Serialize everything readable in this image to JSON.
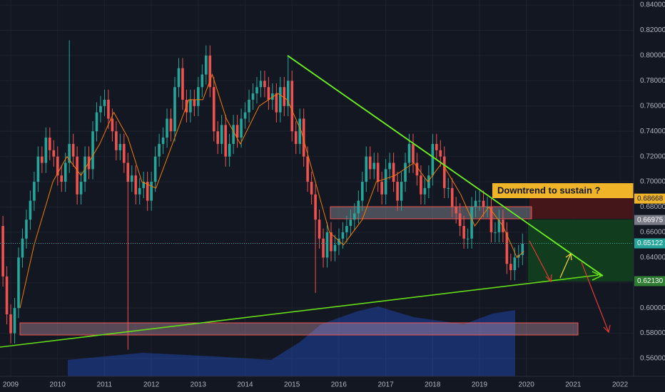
{
  "chart_data": {
    "type": "candlestick",
    "annotation": "Downtrend to sustain ?",
    "up_color": "#26a69a",
    "down_color": "#ef5350",
    "grid": true,
    "open": [
      0.665,
      0.625,
      0.595,
      0.58,
      0.6,
      0.64,
      0.655,
      0.67,
      0.685,
      0.7,
      0.72,
      0.715,
      0.735,
      0.725,
      0.72,
      0.705,
      0.7,
      0.715,
      0.73,
      0.72,
      0.69,
      0.7,
      0.72,
      0.71,
      0.74,
      0.755,
      0.76,
      0.765,
      0.75,
      0.74,
      0.725,
      0.73,
      0.715,
      0.7,
      0.705,
      0.69,
      0.695,
      0.7,
      0.685,
      0.7,
      0.72,
      0.73,
      0.735,
      0.75,
      0.74,
      0.775,
      0.79,
      0.765,
      0.755,
      0.765,
      0.76,
      0.775,
      0.785,
      0.8,
      0.775,
      0.74,
      0.73,
      0.745,
      0.72,
      0.73,
      0.745,
      0.735,
      0.75,
      0.755,
      0.765,
      0.77,
      0.775,
      0.78,
      0.775,
      0.765,
      0.77,
      0.755,
      0.775,
      0.76,
      0.78,
      0.74,
      0.73,
      0.75,
      0.72,
      0.7,
      0.69,
      0.67,
      0.655,
      0.64,
      0.66,
      0.645,
      0.65,
      0.655,
      0.66,
      0.665,
      0.67,
      0.675,
      0.685,
      0.7,
      0.72,
      0.71,
      0.715,
      0.7,
      0.69,
      0.71,
      0.715,
      0.7,
      0.685,
      0.7,
      0.715,
      0.73,
      0.715,
      0.705,
      0.69,
      0.695,
      0.705,
      0.73,
      0.725,
      0.72,
      0.695,
      0.695,
      0.68,
      0.675,
      0.665,
      0.655,
      0.655,
      0.68,
      0.685,
      0.685,
      0.68,
      0.68,
      0.66,
      0.66,
      0.67,
      0.66,
      0.635,
      0.63,
      0.64,
      0.642
    ],
    "high": [
      0.673,
      0.633,
      0.603,
      0.608,
      0.648,
      0.663,
      0.678,
      0.693,
      0.708,
      0.728,
      0.728,
      0.743,
      0.743,
      0.733,
      0.728,
      0.713,
      0.723,
      0.812,
      0.738,
      0.728,
      0.708,
      0.728,
      0.728,
      0.748,
      0.763,
      0.768,
      0.773,
      0.773,
      0.758,
      0.748,
      0.738,
      0.738,
      0.723,
      0.713,
      0.713,
      0.703,
      0.708,
      0.708,
      0.708,
      0.728,
      0.738,
      0.743,
      0.758,
      0.758,
      0.783,
      0.798,
      0.798,
      0.773,
      0.773,
      0.773,
      0.783,
      0.793,
      0.808,
      0.808,
      0.783,
      0.748,
      0.753,
      0.753,
      0.738,
      0.753,
      0.753,
      0.758,
      0.763,
      0.773,
      0.778,
      0.783,
      0.788,
      0.788,
      0.783,
      0.778,
      0.778,
      0.783,
      0.783,
      0.8,
      0.788,
      0.748,
      0.758,
      0.758,
      0.728,
      0.708,
      0.698,
      0.678,
      0.663,
      0.668,
      0.668,
      0.658,
      0.663,
      0.668,
      0.673,
      0.678,
      0.683,
      0.693,
      0.708,
      0.728,
      0.728,
      0.723,
      0.723,
      0.708,
      0.718,
      0.723,
      0.723,
      0.708,
      0.708,
      0.723,
      0.738,
      0.738,
      0.723,
      0.713,
      0.703,
      0.713,
      0.738,
      0.738,
      0.733,
      0.728,
      0.703,
      0.703,
      0.688,
      0.683,
      0.673,
      0.663,
      0.688,
      0.693,
      0.693,
      0.693,
      0.688,
      0.688,
      0.668,
      0.678,
      0.678,
      0.668,
      0.643,
      0.648,
      0.65,
      0.659
    ],
    "low": [
      0.617,
      0.587,
      0.572,
      0.572,
      0.592,
      0.632,
      0.647,
      0.662,
      0.677,
      0.692,
      0.707,
      0.707,
      0.717,
      0.712,
      0.697,
      0.692,
      0.692,
      0.707,
      0.712,
      0.682,
      0.682,
      0.692,
      0.702,
      0.702,
      0.732,
      0.747,
      0.752,
      0.742,
      0.732,
      0.717,
      0.717,
      0.707,
      0.567,
      0.692,
      0.682,
      0.682,
      0.687,
      0.677,
      0.677,
      0.692,
      0.712,
      0.722,
      0.727,
      0.732,
      0.732,
      0.767,
      0.757,
      0.747,
      0.747,
      0.752,
      0.752,
      0.767,
      0.777,
      0.767,
      0.732,
      0.722,
      0.722,
      0.712,
      0.712,
      0.722,
      0.727,
      0.727,
      0.742,
      0.747,
      0.757,
      0.762,
      0.767,
      0.767,
      0.757,
      0.757,
      0.747,
      0.747,
      0.752,
      0.752,
      0.732,
      0.722,
      0.722,
      0.712,
      0.692,
      0.682,
      0.612,
      0.647,
      0.632,
      0.632,
      0.637,
      0.637,
      0.642,
      0.647,
      0.652,
      0.657,
      0.662,
      0.667,
      0.677,
      0.692,
      0.702,
      0.702,
      0.692,
      0.682,
      0.682,
      0.702,
      0.692,
      0.677,
      0.677,
      0.692,
      0.707,
      0.707,
      0.697,
      0.682,
      0.682,
      0.687,
      0.697,
      0.717,
      0.712,
      0.687,
      0.687,
      0.672,
      0.667,
      0.657,
      0.647,
      0.647,
      0.647,
      0.672,
      0.677,
      0.672,
      0.672,
      0.652,
      0.652,
      0.652,
      0.652,
      0.627,
      0.622,
      0.622,
      0.632,
      0.634
    ],
    "close": [
      0.625,
      0.595,
      0.58,
      0.6,
      0.64,
      0.655,
      0.67,
      0.685,
      0.7,
      0.72,
      0.715,
      0.735,
      0.725,
      0.72,
      0.705,
      0.7,
      0.715,
      0.73,
      0.72,
      0.69,
      0.7,
      0.72,
      0.71,
      0.74,
      0.755,
      0.76,
      0.765,
      0.75,
      0.74,
      0.725,
      0.73,
      0.715,
      0.7,
      0.705,
      0.69,
      0.695,
      0.7,
      0.685,
      0.7,
      0.72,
      0.73,
      0.735,
      0.75,
      0.74,
      0.775,
      0.79,
      0.765,
      0.755,
      0.765,
      0.76,
      0.775,
      0.785,
      0.8,
      0.775,
      0.74,
      0.73,
      0.745,
      0.72,
      0.73,
      0.745,
      0.735,
      0.75,
      0.755,
      0.765,
      0.77,
      0.775,
      0.78,
      0.775,
      0.765,
      0.77,
      0.755,
      0.775,
      0.76,
      0.78,
      0.74,
      0.73,
      0.75,
      0.72,
      0.7,
      0.69,
      0.67,
      0.655,
      0.64,
      0.66,
      0.645,
      0.65,
      0.655,
      0.66,
      0.665,
      0.67,
      0.675,
      0.685,
      0.7,
      0.72,
      0.71,
      0.715,
      0.7,
      0.69,
      0.71,
      0.715,
      0.7,
      0.685,
      0.7,
      0.715,
      0.73,
      0.715,
      0.705,
      0.69,
      0.695,
      0.705,
      0.73,
      0.725,
      0.72,
      0.695,
      0.695,
      0.68,
      0.675,
      0.665,
      0.655,
      0.655,
      0.68,
      0.685,
      0.685,
      0.68,
      0.68,
      0.66,
      0.66,
      0.67,
      0.66,
      0.635,
      0.63,
      0.64,
      0.642,
      0.651
    ],
    "moving_average": {
      "color": "#f57c00",
      "x": [
        2009.2,
        2009.5,
        2009.9,
        2010.2,
        2010.5,
        2010.9,
        2011.2,
        2011.5,
        2011.8,
        2012.1,
        2012.4,
        2012.8,
        2013.1,
        2013.3,
        2013.6,
        2013.9,
        2014.3,
        2014.7,
        2014.9,
        2015.2,
        2015.5,
        2015.8,
        2016.1,
        2016.5,
        2016.8,
        2017.2,
        2017.6,
        2017.9,
        2018.2,
        2018.6,
        2018.9,
        2019.2,
        2019.5,
        2019.8,
        2019.95
      ],
      "values": [
        0.6,
        0.65,
        0.7,
        0.72,
        0.705,
        0.73,
        0.755,
        0.735,
        0.7,
        0.695,
        0.725,
        0.765,
        0.765,
        0.785,
        0.75,
        0.73,
        0.76,
        0.77,
        0.765,
        0.74,
        0.7,
        0.66,
        0.65,
        0.67,
        0.7,
        0.705,
        0.715,
        0.7,
        0.715,
        0.69,
        0.665,
        0.68,
        0.665,
        0.64,
        0.645
      ]
    },
    "price_labels": [
      {
        "value": 0.68668,
        "label": "0.68668",
        "color": "#f0b429"
      },
      {
        "value": 0.66975,
        "label": "0.66975",
        "color": "#787b86"
      },
      {
        "value": 0.65122,
        "label": "0.65122",
        "color": "#26a69a"
      },
      {
        "value": 0.6213,
        "label": "0.62130",
        "color": "#2e7d32"
      }
    ],
    "xlim": [
      2008.772,
      2022.288
    ],
    "xticks": [
      2009,
      2010,
      2011,
      2012,
      2013,
      2014,
      2015,
      2016,
      2017,
      2018,
      2019,
      2020,
      2021,
      2022
    ],
    "ylim": [
      0.5459,
      0.844
    ],
    "yticks": [
      {
        "value": 0.56,
        "label": "0.56000"
      },
      {
        "value": 0.58,
        "label": "0.58000"
      },
      {
        "value": 0.6,
        "label": "0.60000"
      },
      {
        "value": 0.62,
        "label": "0.62000"
      },
      {
        "value": 0.64,
        "label": "0.64000"
      },
      {
        "value": 0.66,
        "label": "0.66000"
      },
      {
        "value": 0.68,
        "label": "0.68000"
      },
      {
        "value": 0.7,
        "label": "0.70000"
      },
      {
        "value": 0.72,
        "label": "0.72000"
      },
      {
        "value": 0.74,
        "label": "0.74000"
      },
      {
        "value": 0.76,
        "label": "0.76000"
      },
      {
        "value": 0.78,
        "label": "0.78000"
      },
      {
        "value": 0.8,
        "label": "0.80000"
      },
      {
        "value": 0.82,
        "label": "0.82000"
      },
      {
        "value": 0.84,
        "label": "0.84000"
      }
    ]
  }
}
